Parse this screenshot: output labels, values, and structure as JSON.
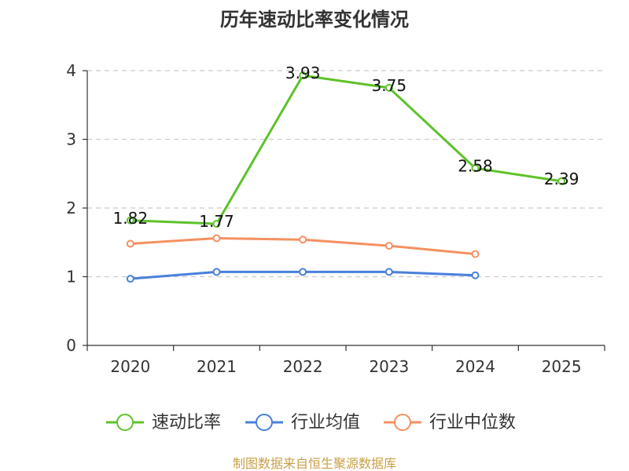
{
  "chart_data": {
    "type": "line",
    "title": "历年速动比率变化情况",
    "categories": [
      "2020",
      "2021",
      "2022",
      "2023",
      "2024",
      "2025"
    ],
    "ylim": [
      0,
      4
    ],
    "yticks": [
      0,
      1,
      2,
      3,
      4
    ],
    "grid": true,
    "legend_position": "bottom",
    "series": [
      {
        "name": "速动比率",
        "color": "#5ec22a",
        "values": [
          1.82,
          1.77,
          3.93,
          3.75,
          2.58,
          2.39
        ],
        "labels": [
          "1.82",
          "1.77",
          "3.93",
          "3.75",
          "2.58",
          "2.39"
        ]
      },
      {
        "name": "行业均值",
        "color": "#4a7fdc",
        "values": [
          0.97,
          1.07,
          1.07,
          1.07,
          1.02,
          null
        ]
      },
      {
        "name": "行业中位数",
        "color": "#f59060",
        "values": [
          1.48,
          1.56,
          1.54,
          1.45,
          1.33,
          null
        ]
      }
    ],
    "source": "制图数据来自恒生聚源数据库"
  }
}
